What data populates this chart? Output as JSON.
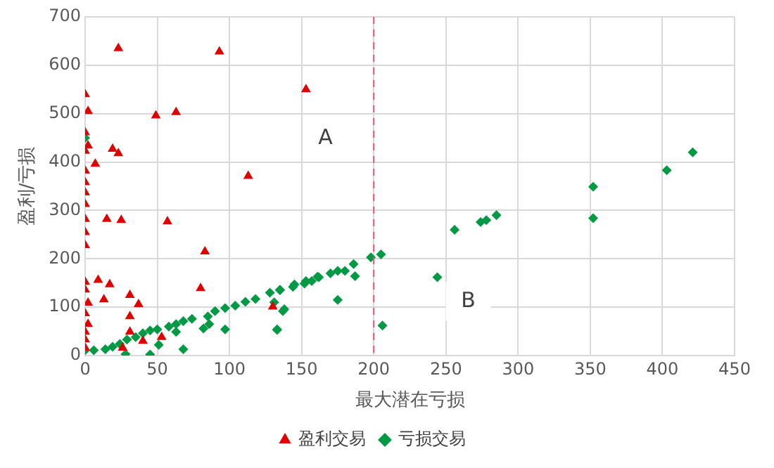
{
  "chart_data": {
    "type": "scatter",
    "xlabel": "最大潜在亏损",
    "ylabel": "盈利/亏损",
    "xlim": [
      0,
      450
    ],
    "ylim": [
      0,
      700
    ],
    "xticks": [
      0,
      50,
      100,
      150,
      200,
      250,
      300,
      350,
      400,
      450
    ],
    "yticks": [
      0,
      100,
      200,
      300,
      400,
      500,
      600,
      700
    ],
    "grid": true,
    "legend": "bottom",
    "annotations": [
      "A",
      "B"
    ],
    "ref_lines": [
      {
        "axis": "x",
        "value": 200,
        "color": "#e05a78",
        "line_style": "dashed"
      }
    ],
    "series": [
      {
        "name": "盈利交易",
        "color": "#e00000",
        "marker": "triangle",
        "x": [
          23,
          93,
          153,
          0,
          2,
          49,
          63,
          0,
          2,
          0,
          19,
          23,
          7,
          113,
          0,
          0,
          0,
          0,
          0,
          0,
          0,
          15,
          25,
          57,
          83,
          80,
          9,
          17,
          0,
          0,
          13,
          31,
          37,
          2,
          31,
          0,
          2,
          0,
          0,
          31,
          53,
          130,
          40,
          26,
          0
        ],
        "values": [
          635,
          628,
          550,
          540,
          505,
          496,
          503,
          461,
          434,
          423,
          427,
          418,
          396,
          371,
          382,
          358,
          337,
          313,
          282,
          255,
          228,
          282,
          280,
          277,
          215,
          139,
          156,
          147,
          152,
          136,
          116,
          125,
          106,
          109,
          81,
          87,
          65,
          49,
          33,
          49,
          38,
          101,
          30,
          16,
          16
        ]
      },
      {
        "name": "亏损交易",
        "color": "#009944",
        "marker": "diamond",
        "x": [
          0,
          0,
          6,
          14,
          19,
          24,
          29,
          35,
          40,
          45,
          50,
          58,
          63,
          68,
          74,
          85,
          90,
          97,
          104,
          111,
          118,
          128,
          135,
          145,
          153,
          161,
          28,
          45,
          51,
          68,
          82,
          97,
          133,
          138,
          63,
          86,
          133,
          137,
          131,
          135,
          144,
          152,
          157,
          162,
          170,
          175,
          180,
          186,
          175,
          187,
          198,
          205,
          206,
          244,
          256,
          274,
          278,
          285,
          352,
          352,
          403,
          421
        ],
        "values": [
          450,
          11,
          11,
          13,
          18,
          24,
          33,
          38,
          46,
          52,
          54,
          60,
          65,
          71,
          76,
          81,
          92,
          98,
          103,
          111,
          117,
          130,
          136,
          147,
          154,
          163,
          3,
          2,
          22,
          13,
          56,
          54,
          54,
          96,
          49,
          65,
          53,
          92,
          110,
          135,
          142,
          149,
          154,
          162,
          170,
          175,
          175,
          189,
          115,
          164,
          203,
          209,
          62,
          162,
          260,
          276,
          280,
          290,
          349,
          284,
          383,
          420
        ]
      }
    ]
  }
}
